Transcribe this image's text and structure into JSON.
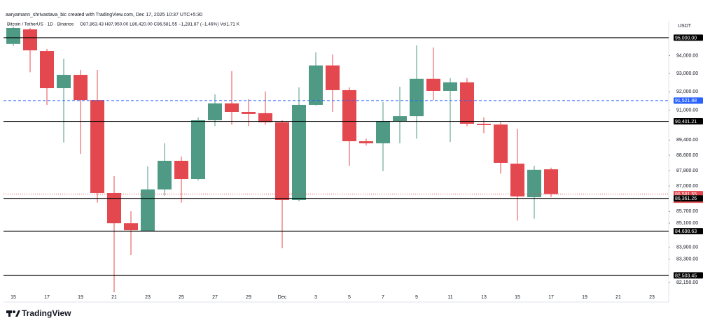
{
  "chart_data": {
    "type": "candlestick",
    "header": "aaryamann_shrivastava_bic created with TradingView.com, Dec 17, 2025 10:37 UTC+5:30",
    "legend": {
      "symbol": "Bitcoin / TetherUS · 1D · Binance",
      "ohlc": "O87,863.43 H87,950.00 L86,420.00 C86,581.55 −1,281.87 (−1.46%) Vol1.71 K"
    },
    "currency": "USDT",
    "countdown": "18:52:37",
    "brand": "TradingView",
    "log_scale": true,
    "grid": false,
    "up_color": "#4e9a84",
    "down_color": "#e4484f",
    "categories": [
      "15",
      null,
      "17",
      null,
      "19",
      null,
      "21",
      null,
      "23",
      null,
      "25",
      null,
      "27",
      null,
      "29",
      null,
      "Dec",
      null,
      "3",
      null,
      "5",
      null,
      "7",
      null,
      "9",
      null,
      "11",
      null,
      "13",
      null,
      "15",
      null,
      "17",
      null,
      "19",
      null,
      "21",
      null,
      "23"
    ],
    "open": [
      94650,
      95470,
      94250,
      92200,
      92930,
      91550,
      86640,
      85100,
      84720,
      86820,
      88310,
      87360,
      90460,
      91370,
      90910,
      90840,
      90350,
      86280,
      91290,
      93450,
      92090,
      89340,
      89230,
      90420,
      90680,
      92710,
      92050,
      92520,
      90270,
      90230,
      88160,
      86420,
      87863.43,
      null,
      null,
      null,
      null,
      null,
      null
    ],
    "high": [
      95630,
      95550,
      94370,
      93820,
      93200,
      93200,
      87510,
      85700,
      88010,
      89230,
      88530,
      90610,
      91860,
      93140,
      91600,
      92020,
      90460,
      92240,
      94180,
      94060,
      92240,
      89480,
      91440,
      92280,
      94570,
      94450,
      92750,
      92750,
      90610,
      90350,
      90000,
      88050,
      87950,
      null,
      null,
      null,
      null,
      null,
      null
    ],
    "low": [
      94530,
      93070,
      91290,
      89270,
      88670,
      86140,
      81680,
      83500,
      84700,
      86500,
      86140,
      87290,
      90150,
      90220,
      90150,
      90220,
      83840,
      86210,
      91250,
      90910,
      88050,
      89120,
      87770,
      89230,
      89480,
      91550,
      89300,
      90150,
      89770,
      87640,
      85230,
      85330,
      86420,
      null,
      null,
      null,
      null,
      null,
      null
    ],
    "close": [
      95550,
      94290,
      92200,
      92930,
      91550,
      86640,
      85100,
      84750,
      86820,
      88310,
      87360,
      90460,
      91370,
      90910,
      90800,
      90350,
      86280,
      91290,
      93450,
      92090,
      89340,
      89230,
      90420,
      90680,
      92710,
      92050,
      92520,
      90270,
      90200,
      88200,
      86460,
      87840,
      86581.55,
      null,
      null,
      null,
      null,
      null,
      null
    ],
    "ylim": [
      81210,
      95630
    ],
    "yticks": [
      {
        "value": 94000,
        "label": "94,000.00"
      },
      {
        "value": 93000,
        "label": "93,000.00"
      },
      {
        "value": 92000,
        "label": "92,000.00"
      },
      {
        "value": 91000,
        "label": "91,000.00"
      },
      {
        "value": 89400,
        "label": "89,400.00"
      },
      {
        "value": 88600,
        "label": "88,600.00"
      },
      {
        "value": 87800,
        "label": "87,800.00"
      },
      {
        "value": 87000,
        "label": "87,000.00"
      },
      {
        "value": 85700,
        "label": "85,700.00"
      },
      {
        "value": 85100,
        "label": "85,100.00"
      },
      {
        "value": 83900,
        "label": "83,900.00"
      },
      {
        "value": 83300,
        "label": "83,300.00"
      },
      {
        "value": 82150,
        "label": "82,150.00"
      }
    ],
    "levels": [
      {
        "value": 95000,
        "label": "95,000.00",
        "color": "#000000",
        "style": "solid"
      },
      {
        "value": 91521.88,
        "label": "91,521.88",
        "color": "#2962ff",
        "style": "dashed"
      },
      {
        "value": 90401.21,
        "label": "90,401.21",
        "color": "#000000",
        "style": "solid"
      },
      {
        "value": 86581.55,
        "label": "86,581.55",
        "color": "#e4484f",
        "style": "dotted"
      },
      {
        "value": 86361.26,
        "label": "86,361.26",
        "color": "#000000",
        "style": "solid"
      },
      {
        "value": 84698.63,
        "label": "84,698.63",
        "color": "#000000",
        "style": "solid"
      },
      {
        "value": 82503.45,
        "label": "82,503.45",
        "color": "#000000",
        "style": "solid"
      }
    ]
  }
}
